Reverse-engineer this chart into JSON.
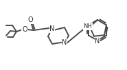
{
  "bg_color": "#ffffff",
  "line_color": "#4a4a4a",
  "line_width": 1.4,
  "text_color": "#2a2a2a",
  "font_size": 6.5,
  "figsize": [
    1.85,
    1.02
  ],
  "dpi": 100,
  "xlim": [
    0,
    185
  ],
  "ylim": [
    0,
    102
  ]
}
